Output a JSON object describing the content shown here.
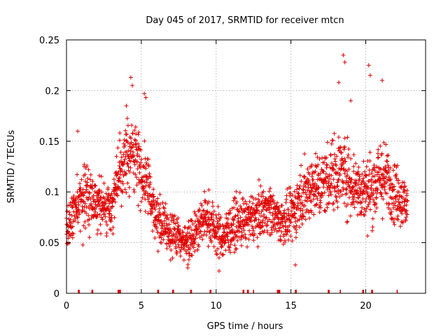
{
  "chart_data": {
    "type": "scatter",
    "title": "Day 045 of 2017, SRMTID for receiver mtcn",
    "xlabel": "GPS time / hours",
    "ylabel": "SRMTID / TECUs",
    "xlim": [
      0,
      24
    ],
    "ylim": [
      0,
      0.25
    ],
    "xticks": [
      0,
      5,
      10,
      15,
      20
    ],
    "yticks": [
      0,
      0.05,
      0.1,
      0.15,
      0.2,
      0.25
    ],
    "xtick_labels": [
      "0",
      "5",
      "10",
      "15",
      "20"
    ],
    "ytick_labels": [
      "0",
      "0.05",
      "0.1",
      "0.15",
      "0.2",
      "0.25"
    ],
    "grid": true,
    "grid_style": "dotted",
    "marker": "+",
    "color": "#e00000",
    "series": [
      {
        "name": "SRMTID",
        "trend": {
          "x": [
            0,
            0.5,
            1,
            1.5,
            2,
            2.5,
            3,
            3.5,
            4,
            4.5,
            5,
            5.5,
            6,
            6.5,
            7,
            7.5,
            8,
            8.5,
            9,
            9.5,
            10,
            10.5,
            11,
            11.5,
            12,
            12.5,
            13,
            13.5,
            14,
            14.5,
            15,
            15.5,
            16,
            16.5,
            17,
            17.5,
            18,
            18.5,
            19,
            19.5,
            20,
            20.5,
            21,
            21.5,
            22,
            22.5,
            22.8
          ],
          "y": [
            0.06,
            0.08,
            0.095,
            0.095,
            0.09,
            0.085,
            0.085,
            0.115,
            0.135,
            0.14,
            0.12,
            0.105,
            0.075,
            0.065,
            0.06,
            0.055,
            0.05,
            0.06,
            0.07,
            0.075,
            0.06,
            0.055,
            0.065,
            0.07,
            0.07,
            0.075,
            0.08,
            0.085,
            0.075,
            0.07,
            0.075,
            0.09,
            0.1,
            0.11,
            0.105,
            0.115,
            0.12,
            0.12,
            0.11,
            0.105,
            0.1,
            0.105,
            0.115,
            0.11,
            0.1,
            0.09,
            0.085
          ],
          "spread": [
            0.015,
            0.025,
            0.03,
            0.025,
            0.022,
            0.022,
            0.022,
            0.03,
            0.03,
            0.03,
            0.03,
            0.028,
            0.022,
            0.02,
            0.02,
            0.018,
            0.018,
            0.02,
            0.022,
            0.022,
            0.022,
            0.02,
            0.022,
            0.022,
            0.022,
            0.022,
            0.022,
            0.022,
            0.02,
            0.02,
            0.022,
            0.028,
            0.03,
            0.03,
            0.03,
            0.032,
            0.035,
            0.035,
            0.032,
            0.03,
            0.03,
            0.032,
            0.035,
            0.03,
            0.028,
            0.025,
            0.022
          ]
        },
        "notable_points": [
          {
            "x": 18.5,
            "y": 0.235
          },
          {
            "x": 18.6,
            "y": 0.228
          },
          {
            "x": 20.2,
            "y": 0.225
          },
          {
            "x": 20.3,
            "y": 0.215
          },
          {
            "x": 4.3,
            "y": 0.213
          },
          {
            "x": 4.4,
            "y": 0.205
          },
          {
            "x": 5.2,
            "y": 0.197
          },
          {
            "x": 5.3,
            "y": 0.193
          },
          {
            "x": 18.2,
            "y": 0.208
          },
          {
            "x": 19.0,
            "y": 0.19
          },
          {
            "x": 0.75,
            "y": 0.16
          },
          {
            "x": 10.2,
            "y": 0.022
          },
          {
            "x": 8.1,
            "y": 0.025
          },
          {
            "x": 15.3,
            "y": 0.028
          },
          {
            "x": 4.0,
            "y": 0.185
          },
          {
            "x": 21.1,
            "y": 0.21
          }
        ]
      }
    ],
    "x_axis_bars": [
      0.8,
      0.85,
      1.7,
      1.75,
      3.45,
      3.5,
      3.55,
      3.6,
      6.1,
      6.15,
      7.1,
      7.15,
      8.3,
      8.35,
      9.6,
      9.65,
      11.8,
      11.85,
      12.1,
      12.15,
      12.5,
      14.1,
      14.15,
      14.2,
      14.25,
      15.3,
      15.35,
      17.5,
      17.55,
      18.3,
      19.8,
      19.85,
      20.4,
      20.45,
      22.1
    ]
  }
}
